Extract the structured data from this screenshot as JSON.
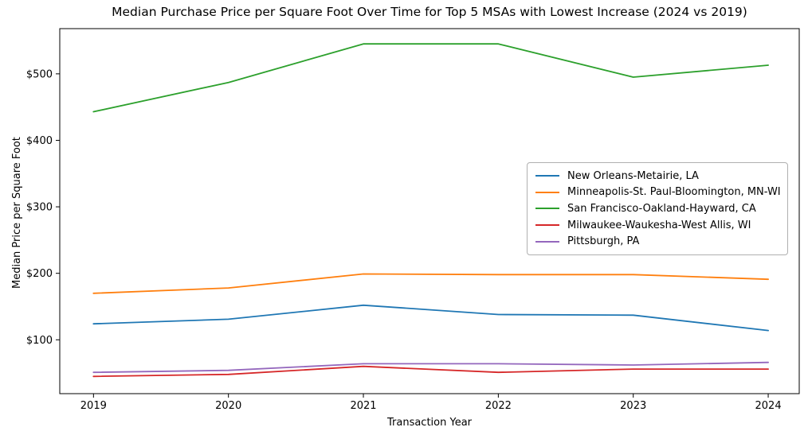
{
  "chart_data": {
    "type": "line",
    "title": "Median Purchase Price per Square Foot Over Time for Top 5 MSAs with Lowest Increase (2024 vs 2019)",
    "xlabel": "Transaction Year",
    "ylabel": "Median Price per Square Foot",
    "x": [
      2019,
      2020,
      2021,
      2022,
      2023,
      2024
    ],
    "xtick_labels": [
      "2019",
      "2020",
      "2021",
      "2022",
      "2023",
      "2024"
    ],
    "ytick_values": [
      100,
      200,
      300,
      400,
      500
    ],
    "ytick_labels": [
      "$100",
      "$200",
      "$300",
      "$400",
      "$500"
    ],
    "xlim": [
      2018.75,
      2024.23
    ],
    "ylim": [
      19,
      568
    ],
    "grid": false,
    "legend_position": "center-right",
    "axis_color": "#000000",
    "background_color": "#ffffff",
    "series": [
      {
        "name": "New Orleans-Metairie, LA",
        "color": "#1f77b4",
        "values": [
          124,
          131,
          152,
          138,
          137,
          114
        ]
      },
      {
        "name": "Minneapolis-St. Paul-Bloomington, MN-WI",
        "color": "#ff7f0e",
        "values": [
          170,
          178,
          199,
          198,
          198,
          191
        ]
      },
      {
        "name": "San Francisco-Oakland-Hayward, CA",
        "color": "#2ca02c",
        "values": [
          443,
          487,
          545,
          545,
          495,
          513
        ]
      },
      {
        "name": "Milwaukee-Waukesha-West Allis, WI",
        "color": "#d62728",
        "values": [
          45,
          48,
          60,
          51,
          56,
          56
        ]
      },
      {
        "name": "Pittsburgh, PA",
        "color": "#9467bd",
        "values": [
          51,
          54,
          64,
          64,
          62,
          66
        ]
      }
    ]
  }
}
